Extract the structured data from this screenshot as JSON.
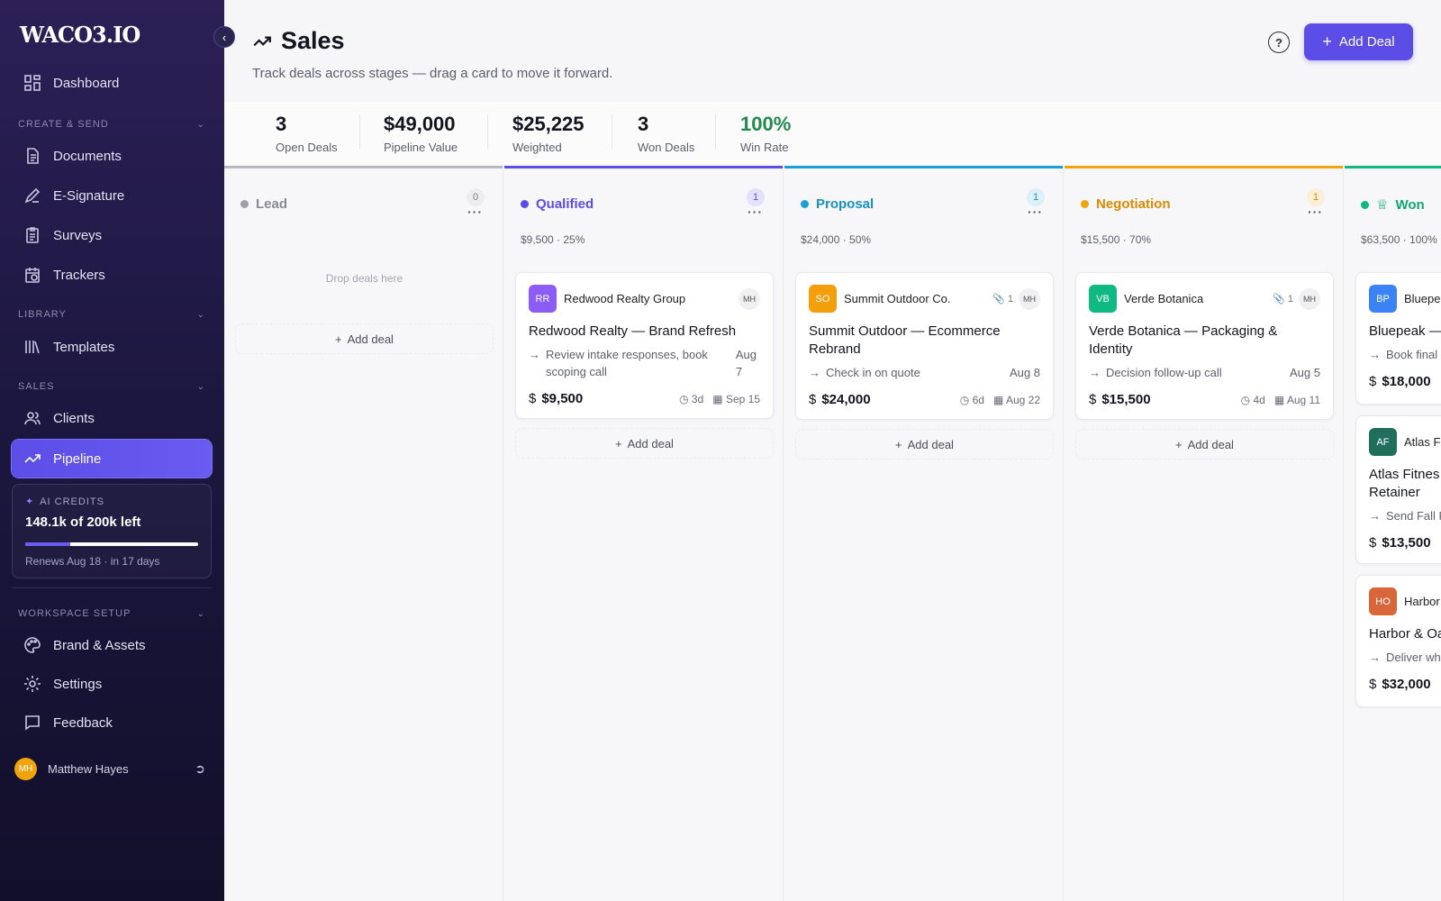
{
  "app": {
    "logo": "WACO3.IO"
  },
  "sidebar": {
    "dashboard": "Dashboard",
    "sections": {
      "create_send": "CREATE & SEND",
      "library": "LIBRARY",
      "sales": "SALES",
      "workspace": "WORKSPACE SETUP"
    },
    "items": {
      "documents": "Documents",
      "esignature": "E-Signature",
      "surveys": "Surveys",
      "trackers": "Trackers",
      "templates": "Templates",
      "clients": "Clients",
      "pipeline": "Pipeline",
      "brand": "Brand & Assets",
      "settings": "Settings",
      "feedback": "Feedback"
    },
    "credits": {
      "label": "AI CREDITS",
      "value": "148.1k of 200k left",
      "used_fraction": 0.26,
      "renews": "Renews Aug 18 · in 17 days"
    },
    "user": {
      "initials": "MH",
      "name": "Matthew Hayes"
    }
  },
  "header": {
    "title": "Sales",
    "subtitle": "Track deals across stages — drag a card to move it forward.",
    "add_label": "Add Deal"
  },
  "stats": [
    {
      "value": "3",
      "label": "Open Deals"
    },
    {
      "value": "$49,000",
      "label": "Pipeline Value"
    },
    {
      "value": "$25,225",
      "label": "Weighted"
    },
    {
      "value": "3",
      "label": "Won Deals"
    },
    {
      "value": "100%",
      "label": "Win Rate"
    }
  ],
  "board": {
    "add_deal": "Add deal",
    "drop_text": "Drop deals here",
    "columns": [
      {
        "name": "Lead",
        "count": "0",
        "color": "#9a9aa4",
        "summary": ""
      },
      {
        "name": "Qualified",
        "count": "1",
        "color": "#5b4de6",
        "summary": "$9,500 · 25%",
        "card": {
          "initials": "RR",
          "badge_color": "#8b5cf6",
          "company": "Redwood Realty Group",
          "owner": "MH",
          "attachments": "",
          "title": "Redwood Realty — Brand Refresh",
          "task": "Review intake responses, book scoping call",
          "task_due": "Aug 7",
          "amount": "$9,500",
          "age": "3d",
          "close": "Sep 15"
        }
      },
      {
        "name": "Proposal",
        "count": "1",
        "color": "#1aa0d8",
        "summary": "$24,000 · 50%",
        "card": {
          "initials": "SO",
          "badge_color": "#f59e0b",
          "company": "Summit Outdoor Co.",
          "owner": "MH",
          "attachments": "1",
          "title": "Summit Outdoor — Ecommerce Rebrand",
          "task": "Check in on quote",
          "task_due": "Aug 8",
          "amount": "$24,000",
          "age": "6d",
          "close": "Aug 22"
        }
      },
      {
        "name": "Negotiation",
        "count": "1",
        "color": "#f0a30a",
        "summary": "$15,500 · 70%",
        "card": {
          "initials": "VB",
          "badge_color": "#10b981",
          "company": "Verde Botanica",
          "owner": "MH",
          "attachments": "1",
          "title": "Verde Botanica — Packaging & Identity",
          "task": "Decision follow-up call",
          "task_due": "Aug 5",
          "amount": "$15,500",
          "age": "4d",
          "close": "Aug 11"
        }
      },
      {
        "name": "Won",
        "count": "",
        "color": "#10b981",
        "summary": "$63,500 · 100%",
        "cards": [
          {
            "initials": "BP",
            "badge_color": "#3b82f6",
            "company": "Bluepe",
            "title": "Bluepeak —",
            "task": "Book final V",
            "amount": "$18,000"
          },
          {
            "initials": "AF",
            "badge_color": "#1f6f5c",
            "company": "Atlas Fi",
            "title": "Atlas Fitnes Retainer",
            "task": "Send Fall Re",
            "amount": "$13,500"
          },
          {
            "initials": "HO",
            "badge_color": "#d9663a",
            "company": "Harbor",
            "title": "Harbor & Oa",
            "task": "Deliver who",
            "amount": "$32,000"
          }
        ]
      }
    ]
  }
}
